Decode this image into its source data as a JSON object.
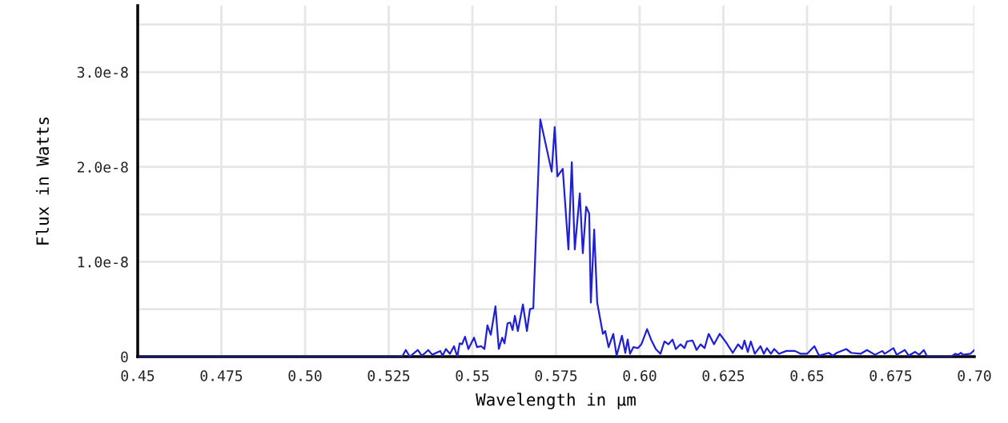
{
  "chart_data": {
    "type": "line",
    "xlabel": "Wavelength in µm",
    "ylabel": "Flux in Watts",
    "xlim": [
      0.45,
      0.7
    ],
    "ylim": [
      0,
      3.7e-08
    ],
    "xticks": [
      {
        "value": 0.45,
        "label": "0.45"
      },
      {
        "value": 0.475,
        "label": "0.475"
      },
      {
        "value": 0.5,
        "label": "0.50"
      },
      {
        "value": 0.525,
        "label": "0.525"
      },
      {
        "value": 0.55,
        "label": "0.55"
      },
      {
        "value": 0.575,
        "label": "0.575"
      },
      {
        "value": 0.6,
        "label": "0.60"
      },
      {
        "value": 0.625,
        "label": "0.625"
      },
      {
        "value": 0.65,
        "label": "0.65"
      },
      {
        "value": 0.675,
        "label": "0.675"
      },
      {
        "value": 0.7,
        "label": "0.70"
      }
    ],
    "yticks": [
      {
        "value": 0,
        "label": "0"
      },
      {
        "value": 5e-09,
        "label": null
      },
      {
        "value": 1e-08,
        "label": "1.0e-8"
      },
      {
        "value": 1.5e-08,
        "label": null
      },
      {
        "value": 2e-08,
        "label": "2.0e-8"
      },
      {
        "value": 2.5e-08,
        "label": null
      },
      {
        "value": 3e-08,
        "label": "3.0e-8"
      },
      {
        "value": 3.5e-08,
        "label": null
      }
    ],
    "grid": true,
    "marker": "none",
    "line_style": "solid",
    "series": [
      {
        "color": "#1f1fd6",
        "x": [
          0.45,
          0.529,
          0.5301,
          0.5313,
          0.5337,
          0.5349,
          0.5356,
          0.5368,
          0.538,
          0.5404,
          0.5411,
          0.5421,
          0.5433,
          0.5445,
          0.5455,
          0.5462,
          0.5469,
          0.5478,
          0.5488,
          0.5505,
          0.5514,
          0.5526,
          0.5536,
          0.5545,
          0.5555,
          0.5569,
          0.5579,
          0.5589,
          0.5596,
          0.5605,
          0.5613,
          0.562,
          0.5627,
          0.5636,
          0.5651,
          0.5663,
          0.5672,
          0.5682,
          0.5703,
          0.5737,
          0.5746,
          0.5754,
          0.577,
          0.5787,
          0.5797,
          0.5806,
          0.5821,
          0.583,
          0.584,
          0.5849,
          0.5854,
          0.5864,
          0.5873,
          0.589,
          0.5897,
          0.5907,
          0.5921,
          0.5931,
          0.5947,
          0.5957,
          0.5964,
          0.5971,
          0.5981,
          0.5995,
          0.6005,
          0.6022,
          0.6034,
          0.6048,
          0.6062,
          0.6074,
          0.6086,
          0.6098,
          0.6108,
          0.6122,
          0.6134,
          0.6141,
          0.6158,
          0.617,
          0.6182,
          0.6194,
          0.6206,
          0.6222,
          0.6239,
          0.6258,
          0.6278,
          0.6294,
          0.6306,
          0.6313,
          0.6323,
          0.6332,
          0.6344,
          0.6361,
          0.6371,
          0.638,
          0.6392,
          0.6402,
          0.6416,
          0.6438,
          0.6464,
          0.6481,
          0.65,
          0.6522,
          0.6536,
          0.6565,
          0.6577,
          0.6589,
          0.6617,
          0.6632,
          0.666,
          0.6679,
          0.6703,
          0.6725,
          0.6732,
          0.6758,
          0.6768,
          0.6792,
          0.6804,
          0.6823,
          0.6835,
          0.6849,
          0.6859,
          0.6931,
          0.6943,
          0.6952,
          0.6959,
          0.6967,
          0.6988,
          0.7
        ],
        "values": [
          0,
          0,
          7e-10,
          0,
          7e-10,
          1e-10,
          3e-10,
          7e-10,
          2e-10,
          6e-10,
          1e-10,
          8e-10,
          3e-10,
          1.1e-09,
          0,
          1.4e-09,
          1.3e-09,
          2.1e-09,
          8e-10,
          2e-09,
          1e-09,
          1.1e-09,
          8e-10,
          3.3e-09,
          2.3e-09,
          5.3e-09,
          8e-10,
          2e-09,
          1.4e-09,
          3.5e-09,
          3.6e-09,
          2.8e-09,
          4.3e-09,
          2.7e-09,
          5.5e-09,
          2.7e-09,
          5e-09,
          5.1e-09,
          2.5e-08,
          1.95e-08,
          2.42e-08,
          1.9e-08,
          1.98e-08,
          1.13e-08,
          2.05e-08,
          1.13e-08,
          1.72e-08,
          1.09e-08,
          1.58e-08,
          1.51e-08,
          5.7e-09,
          1.34e-08,
          5.7e-09,
          2.4e-09,
          2.7e-09,
          1e-09,
          2.4e-09,
          1e-10,
          2.2e-09,
          4e-10,
          1.8e-09,
          3e-10,
          1e-09,
          9e-10,
          1.3e-09,
          2.9e-09,
          1.8e-09,
          8e-10,
          3e-10,
          1.6e-09,
          1.3e-09,
          1.8e-09,
          8e-10,
          1.3e-09,
          9e-10,
          1.6e-09,
          1.7e-09,
          7e-10,
          1.3e-09,
          9e-10,
          2.4e-09,
          1.3e-09,
          2.4e-09,
          1.5e-09,
          4e-10,
          1.3e-09,
          8e-10,
          1.7e-09,
          5e-10,
          1.6e-09,
          3e-10,
          1.1e-09,
          3e-10,
          9e-10,
          3e-10,
          8e-10,
          3e-10,
          6e-10,
          6e-10,
          3e-10,
          3e-10,
          1.1e-09,
          1e-10,
          4e-10,
          1e-10,
          4e-10,
          8e-10,
          4e-10,
          3e-10,
          7e-10,
          2e-10,
          6e-10,
          3e-10,
          9e-10,
          2e-10,
          7e-10,
          1e-10,
          5e-10,
          2e-10,
          7e-10,
          0,
          0,
          3e-10,
          2e-10,
          4e-10,
          2e-10,
          3e-10,
          7e-10
        ]
      }
    ]
  }
}
